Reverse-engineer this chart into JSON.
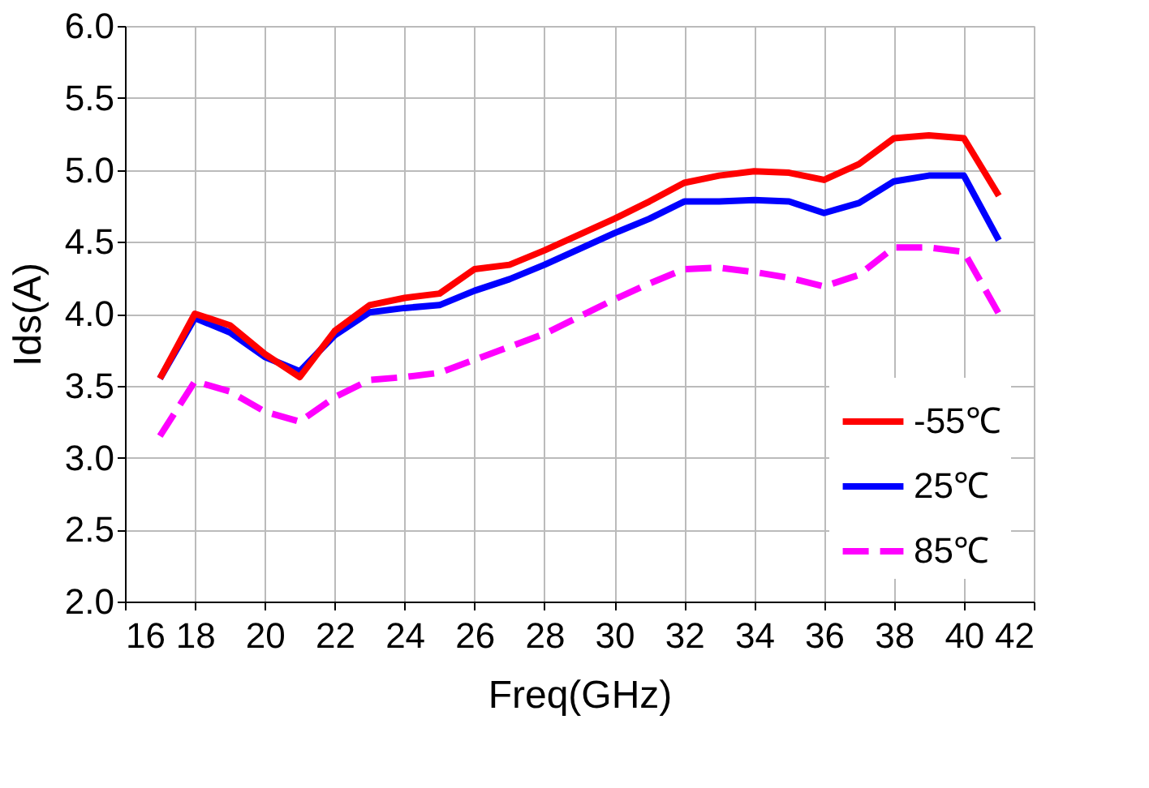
{
  "chart_data": {
    "type": "line",
    "xlabel": "Freq(GHz)",
    "ylabel": "Ids(A)",
    "x": [
      17,
      18,
      19,
      20,
      21,
      22,
      23,
      24,
      25,
      26,
      27,
      28,
      29,
      30,
      31,
      32,
      33,
      34,
      35,
      36,
      37,
      38,
      39,
      40,
      41
    ],
    "series": [
      {
        "name": "-55℃",
        "color": "#ff0000",
        "line_style": "solid",
        "values": [
          3.55,
          4.0,
          3.92,
          3.72,
          3.56,
          3.88,
          4.06,
          4.11,
          4.14,
          4.31,
          4.34,
          4.44,
          4.55,
          4.66,
          4.78,
          4.91,
          4.96,
          4.99,
          4.98,
          4.93,
          5.04,
          5.22,
          5.24,
          5.22,
          4.82
        ]
      },
      {
        "name": "25℃",
        "color": "#0000ff",
        "line_style": "solid",
        "values": [
          3.55,
          3.97,
          3.87,
          3.7,
          3.6,
          3.85,
          4.01,
          4.04,
          4.06,
          4.16,
          4.24,
          4.34,
          4.45,
          4.56,
          4.66,
          4.78,
          4.78,
          4.79,
          4.78,
          4.7,
          4.77,
          4.92,
          4.96,
          4.96,
          4.51
        ]
      },
      {
        "name": "85℃",
        "color": "#ff00ff",
        "line_style": "dashed",
        "values": [
          3.15,
          3.53,
          3.46,
          3.32,
          3.25,
          3.42,
          3.54,
          3.56,
          3.59,
          3.68,
          3.77,
          3.86,
          3.98,
          4.1,
          4.21,
          4.31,
          4.32,
          4.29,
          4.25,
          4.19,
          4.27,
          4.46,
          4.46,
          4.43,
          4.0
        ]
      }
    ],
    "xlim": [
      16,
      42
    ],
    "xticks": [
      16,
      18,
      20,
      22,
      24,
      26,
      28,
      30,
      32,
      34,
      36,
      38,
      40,
      42
    ],
    "ylim": [
      2,
      6
    ],
    "yticks": [
      {
        "value": 2,
        "label": "2.0"
      },
      {
        "value": 2.5,
        "label": "2.5"
      },
      {
        "value": 3,
        "label": "3.0"
      },
      {
        "value": 3.5,
        "label": "3.5"
      },
      {
        "value": 4,
        "label": "4.0"
      },
      {
        "value": 4.5,
        "label": "4.5"
      },
      {
        "value": 5,
        "label": "5.0"
      },
      {
        "value": 5.5,
        "label": "5.5"
      },
      {
        "value": 6,
        "label": "6.0"
      }
    ],
    "grid": true,
    "legend": "bottom right",
    "marker": "none"
  }
}
